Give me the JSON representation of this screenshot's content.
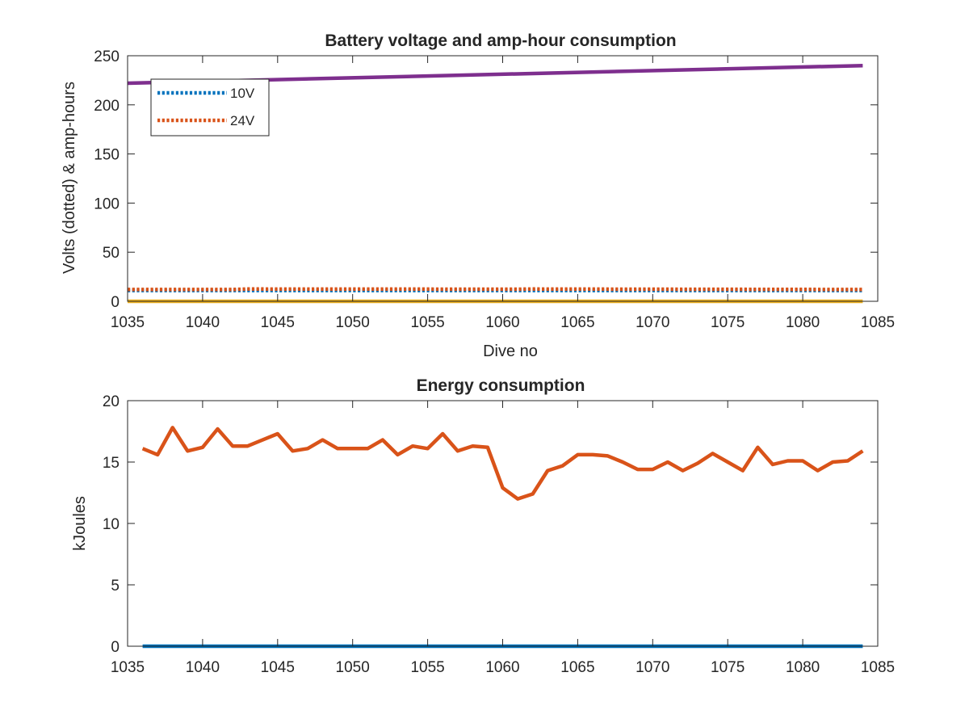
{
  "chart_data": [
    {
      "type": "line",
      "title": "Battery voltage and amp-hour consumption",
      "xlabel": "Dive no",
      "ylabel": "Volts (dotted) & amp-hours",
      "xlim": [
        1035,
        1085
      ],
      "ylim": [
        0,
        250
      ],
      "xticks": [
        "1035",
        "1040",
        "1045",
        "1050",
        "1055",
        "1060",
        "1065",
        "1070",
        "1075",
        "1080",
        "1085"
      ],
      "yticks": [
        "0",
        "50",
        "100",
        "150",
        "200",
        "250"
      ],
      "grid": false,
      "legend_position": "top-left",
      "series": [
        {
          "name": "10V",
          "style": "dotted",
          "color": "#0072BD",
          "x": [
            1035,
            1084
          ],
          "y": [
            11,
            11
          ]
        },
        {
          "name": "24V",
          "style": "dotted",
          "color": "#D95319",
          "x": [
            1035,
            1042,
            1043,
            1061,
            1062,
            1084
          ],
          "y": [
            12,
            12,
            12.5,
            12.3,
            12.5,
            12
          ]
        },
        {
          "style": "solid",
          "color": "#EDB120",
          "x": [
            1035,
            1084
          ],
          "y": [
            0,
            0
          ]
        },
        {
          "style": "solid",
          "color": "#7E2F8E",
          "x": [
            1035,
            1084
          ],
          "y": [
            222,
            240
          ]
        }
      ]
    },
    {
      "type": "line",
      "title": "Energy consumption",
      "xlabel": "",
      "ylabel": "kJoules",
      "xlim": [
        1035,
        1085
      ],
      "ylim": [
        0,
        20
      ],
      "xticks": [
        "1035",
        "1040",
        "1045",
        "1050",
        "1055",
        "1060",
        "1065",
        "1070",
        "1075",
        "1080",
        "1085"
      ],
      "yticks": [
        "0",
        "5",
        "10",
        "15",
        "20"
      ],
      "grid": false,
      "series": [
        {
          "style": "solid",
          "color": "#0072BD",
          "x": [
            1036,
            1084
          ],
          "y": [
            0,
            0
          ]
        },
        {
          "style": "solid",
          "color": "#D95319",
          "x": [
            1036,
            1037,
            1038,
            1039,
            1040,
            1041,
            1042,
            1043,
            1044,
            1045,
            1046,
            1047,
            1048,
            1049,
            1050,
            1051,
            1052,
            1053,
            1054,
            1055,
            1056,
            1057,
            1058,
            1059,
            1060,
            1061,
            1062,
            1063,
            1064,
            1065,
            1066,
            1067,
            1068,
            1069,
            1070,
            1071,
            1072,
            1073,
            1074,
            1075,
            1076,
            1077,
            1078,
            1079,
            1080,
            1081,
            1082,
            1083,
            1084
          ],
          "y": [
            16.1,
            15.6,
            17.8,
            15.9,
            16.2,
            17.7,
            16.3,
            16.3,
            16.8,
            17.3,
            15.9,
            16.1,
            16.8,
            16.1,
            16.1,
            16.1,
            16.8,
            15.6,
            16.3,
            16.1,
            17.3,
            15.9,
            16.3,
            16.2,
            12.9,
            12.0,
            12.4,
            14.3,
            14.7,
            15.6,
            15.6,
            15.5,
            15.0,
            14.4,
            14.4,
            15.0,
            14.3,
            14.9,
            15.7,
            15.0,
            14.3,
            16.2,
            14.8,
            15.1,
            15.1,
            14.3,
            15.0,
            15.1,
            15.9
          ]
        }
      ]
    }
  ]
}
